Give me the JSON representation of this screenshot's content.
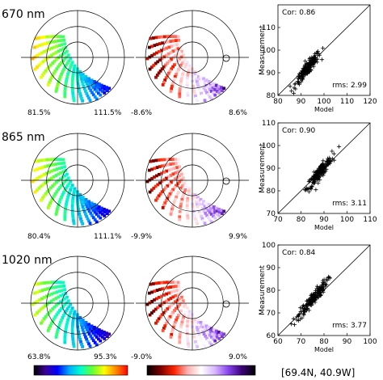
{
  "chart_data": [
    {
      "type": "polar-scatter",
      "row_label": "670 nm",
      "left_panel": {
        "range_labels": [
          "81.5%",
          "111.5%"
        ],
        "colormap": "rainbow"
      },
      "middle_panel": {
        "range_labels": [
          "-8.6%",
          "8.6%"
        ],
        "colormap": "diverging-red-purple"
      }
    },
    {
      "type": "polar-scatter",
      "row_label": "865 nm",
      "left_panel": {
        "range_labels": [
          "80.4%",
          "111.1%"
        ],
        "colormap": "rainbow"
      },
      "middle_panel": {
        "range_labels": [
          "-9.9%",
          "9.9%"
        ],
        "colormap": "diverging-red-purple"
      }
    },
    {
      "type": "polar-scatter",
      "row_label": "1020 nm",
      "left_panel": {
        "range_labels": [
          "63.8%",
          "95.3%"
        ],
        "colormap": "rainbow"
      },
      "middle_panel": {
        "range_labels": [
          "-9.0%",
          "9.0%"
        ],
        "colormap": "diverging-red-purple"
      }
    },
    {
      "type": "scatter",
      "xlabel": "Model",
      "ylabel": "Measurement",
      "xlim": [
        80,
        120
      ],
      "ylim": [
        80,
        120
      ],
      "xticks": [
        "80",
        "90",
        "100",
        "110",
        "120"
      ],
      "yticks": [
        "80",
        "90",
        "100",
        "110"
      ],
      "cor_label": "Cor: 0.86",
      "rms_label": "rms: 2.99",
      "one_to_one_line": true,
      "cloud": {
        "x_center": 93,
        "y_center": 92,
        "spread": 6,
        "points": 180
      }
    },
    {
      "type": "scatter",
      "xlabel": "Model",
      "ylabel": "Measurement",
      "xlim": [
        70,
        110
      ],
      "ylim": [
        70,
        110
      ],
      "xticks": [
        "70",
        "80",
        "90",
        "100",
        "110"
      ],
      "yticks": [
        "70",
        "80",
        "90",
        "100",
        "110"
      ],
      "cor_label": "Cor: 0.90",
      "rms_label": "rms: 3.11",
      "one_to_one_line": true,
      "cloud": {
        "x_center": 88,
        "y_center": 88,
        "spread": 6,
        "points": 180
      }
    },
    {
      "type": "scatter",
      "xlabel": "Model",
      "ylabel": "Measurement",
      "xlim": [
        60,
        100
      ],
      "ylim": [
        60,
        100
      ],
      "xticks": [
        "60",
        "70",
        "80",
        "90",
        "100"
      ],
      "yticks": [
        "60",
        "70",
        "80",
        "90",
        "100"
      ],
      "cor_label": "Cor: 0.84",
      "rms_label": "rms: 3.77",
      "one_to_one_line": true,
      "cloud": {
        "x_center": 75,
        "y_center": 76,
        "spread": 7,
        "points": 180
      }
    }
  ],
  "location_label": "[69.4N, 40.9W]",
  "colorbars": [
    {
      "colormap": "rainbow",
      "colors": [
        "#000000",
        "#3b0099",
        "#0000ff",
        "#00aaff",
        "#00ffcc",
        "#66ff33",
        "#ffff00",
        "#ff8800",
        "#ff0000"
      ]
    },
    {
      "colormap": "diverging-red-purple",
      "colors": [
        "#000000",
        "#7a0000",
        "#ff2200",
        "#ffb0b0",
        "#ffffff",
        "#d8b8ff",
        "#8844ee",
        "#3b0077",
        "#000000"
      ]
    }
  ]
}
